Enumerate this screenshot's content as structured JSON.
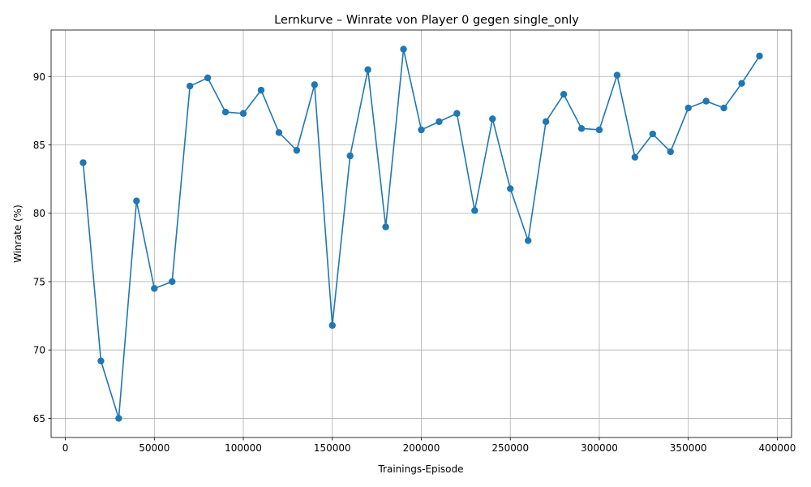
{
  "chart_data": {
    "type": "line",
    "title": "Lernkurve – Winrate von Player 0 gegen single_only",
    "xlabel": "Trainings-Episode",
    "ylabel": "Winrate (%)",
    "xlim": [
      -8000,
      408000
    ],
    "ylim": [
      63.6,
      93.4
    ],
    "xticks": [
      0,
      50000,
      100000,
      150000,
      200000,
      250000,
      300000,
      350000,
      400000
    ],
    "yticks": [
      65,
      70,
      75,
      80,
      85,
      90
    ],
    "grid": true,
    "color": "#1f77b4",
    "marker": "circle",
    "series": [
      {
        "x": [
          10000,
          20000,
          30000,
          40000,
          50000,
          60000,
          70000,
          80000,
          90000,
          100000,
          110000,
          120000,
          130000,
          140000,
          150000,
          160000,
          170000,
          180000,
          190000,
          200000,
          210000,
          220000,
          230000,
          240000,
          250000,
          260000,
          270000,
          280000,
          290000,
          300000,
          310000,
          320000,
          330000,
          340000,
          350000,
          360000,
          370000,
          380000,
          390000
        ],
        "values": [
          83.7,
          69.2,
          65.0,
          80.9,
          74.5,
          75.0,
          89.3,
          89.9,
          87.4,
          87.3,
          89.0,
          85.9,
          84.6,
          89.4,
          71.8,
          84.2,
          90.5,
          79.0,
          92.0,
          86.1,
          86.7,
          87.3,
          80.2,
          86.9,
          81.8,
          78.0,
          86.7,
          88.7,
          86.2,
          86.1,
          90.1,
          84.1,
          85.8,
          84.5,
          87.7,
          88.2,
          87.7,
          89.5,
          91.5
        ]
      }
    ]
  }
}
